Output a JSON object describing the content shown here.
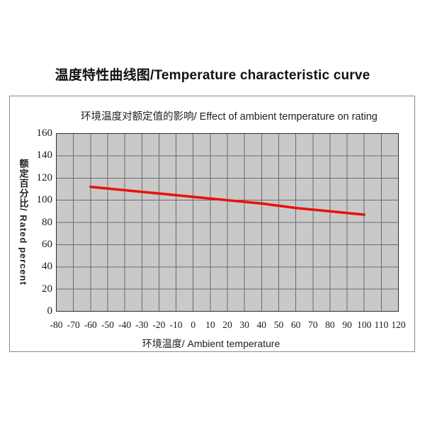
{
  "page_title": "温度特性曲线图/Temperature characteristic curve",
  "chart_data": {
    "type": "line",
    "title": "环境温度对额定值的影响/ Effect of ambient temperature on rating",
    "xlabel": "环境温度/ Ambient temperature",
    "ylabel": "额定百分比/ Rated percent",
    "xlim": [
      -80,
      120
    ],
    "ylim": [
      0,
      160
    ],
    "x_ticks": [
      -80,
      -70,
      -60,
      -50,
      -40,
      -30,
      -20,
      -10,
      0,
      10,
      20,
      30,
      40,
      50,
      60,
      70,
      80,
      90,
      100,
      110,
      120
    ],
    "y_ticks": [
      0,
      20,
      40,
      60,
      80,
      100,
      120,
      140,
      160
    ],
    "grid": true,
    "legend_position": "none",
    "plot_background": "#c9c9c9",
    "grid_color": "#6a6a6a",
    "plot_border_color": "#2f2f2f",
    "series": [
      {
        "name": "rated-percent-vs-ambient-temperature",
        "color": "#e8130d",
        "x": [
          -60,
          -40,
          -20,
          0,
          20,
          40,
          60,
          80,
          100
        ],
        "y": [
          112,
          109,
          106,
          103,
          100,
          97,
          93,
          90,
          87
        ]
      }
    ]
  }
}
